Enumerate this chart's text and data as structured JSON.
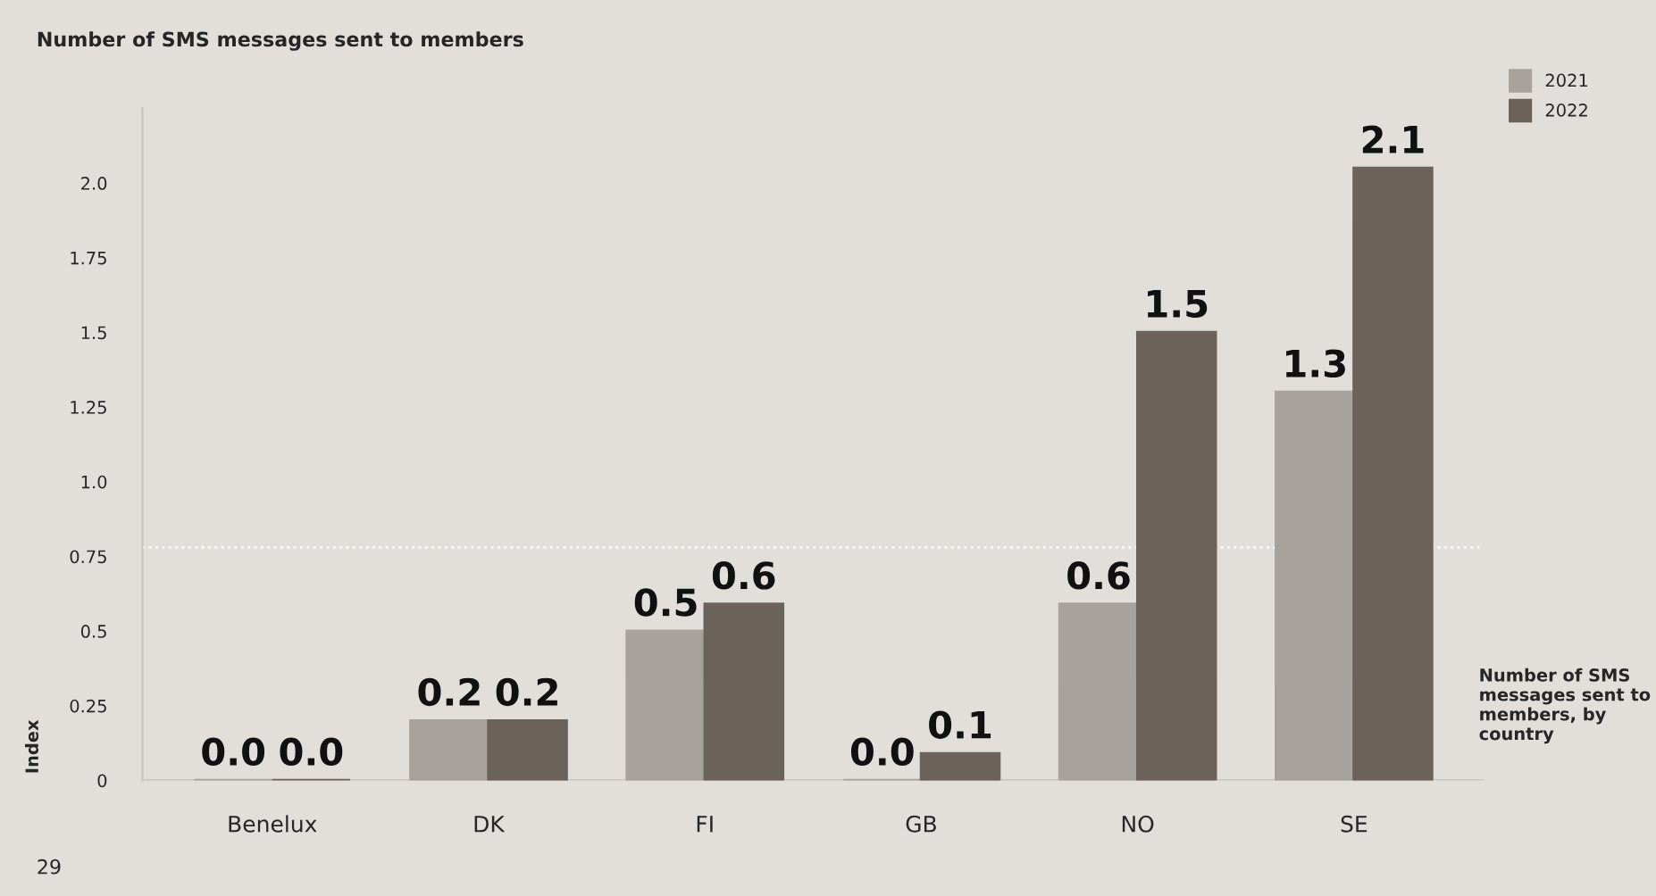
{
  "chart_data": {
    "type": "bar",
    "title": "Number of SMS messages sent to members",
    "ylabel": "Index",
    "categories": [
      "Benelux",
      "DK",
      "FI",
      "GB",
      "NO",
      "SE"
    ],
    "series": [
      {
        "name": "2021",
        "color": "#a8a29c",
        "values": [
          0.0,
          0.2,
          0.5,
          0.0,
          0.59,
          1.3
        ],
        "value_labels": [
          "0.0",
          "0.2",
          "0.5",
          "0.0",
          "0.6",
          "1.3"
        ]
      },
      {
        "name": "2022",
        "color": "#6b625c",
        "values": [
          0.0,
          0.2,
          0.59,
          0.09,
          1.5,
          2.05
        ],
        "value_labels": [
          "0.0",
          "0.2",
          "0.6",
          "0.1",
          "1.5",
          "2.1"
        ]
      }
    ],
    "ylim": [
      0,
      2.25
    ],
    "yticks": [
      0,
      0.25,
      0.5,
      0.75,
      {
        "value": 1,
        "label": "1.0"
      },
      1.25,
      1.5,
      1.75,
      {
        "value": 2,
        "label": "2.0"
      }
    ],
    "ref_lines": [
      {
        "axis": "y",
        "value": 0.78,
        "color": "#ffffff",
        "line_style": "dotted"
      }
    ],
    "annotations": [
      "Number of SMS messages sent to members, by country",
      "29"
    ],
    "legend": "top right",
    "grid": false
  }
}
